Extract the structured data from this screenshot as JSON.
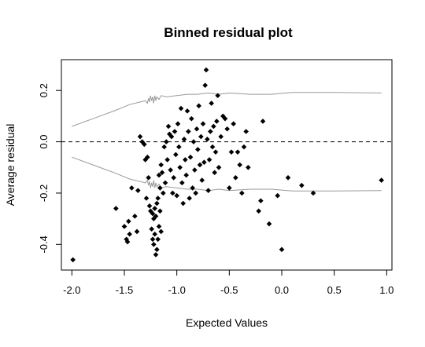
{
  "chart_data": {
    "type": "scatter",
    "title": "Binned residual plot",
    "xlabel": "Expected Values",
    "ylabel": "Average residual",
    "xlim": [
      -2.1,
      1.05
    ],
    "ylim": [
      -0.5,
      0.32
    ],
    "x_ticks": [
      -2.0,
      -1.5,
      -1.0,
      -0.5,
      0.0,
      0.5,
      1.0
    ],
    "x_tick_labels": [
      "-2.0",
      "-1.5",
      "-1.0",
      "-0.5",
      "0.0",
      "0.5",
      "1.0"
    ],
    "y_ticks": [
      -0.4,
      -0.2,
      0.0,
      0.2
    ],
    "y_tick_labels": [
      "-0.4",
      "-0.2",
      "0.0",
      "0.2"
    ],
    "grid": false,
    "colors": {
      "points": "#000000",
      "bands": "#999999",
      "reference": "#000000"
    },
    "reference_line": {
      "y": 0,
      "style": "dashed"
    },
    "upper_band": [
      [
        -2.0,
        0.06
      ],
      [
        -1.8,
        0.09
      ],
      [
        -1.6,
        0.12
      ],
      [
        -1.45,
        0.145
      ],
      [
        -1.35,
        0.155
      ],
      [
        -1.3,
        0.16
      ],
      [
        -1.28,
        0.15
      ],
      [
        -1.27,
        0.17
      ],
      [
        -1.26,
        0.155
      ],
      [
        -1.25,
        0.18
      ],
      [
        -1.24,
        0.16
      ],
      [
        -1.23,
        0.175
      ],
      [
        -1.22,
        0.15
      ],
      [
        -1.21,
        0.18
      ],
      [
        -1.2,
        0.16
      ],
      [
        -1.19,
        0.175
      ],
      [
        -1.17,
        0.165
      ],
      [
        -1.15,
        0.18
      ],
      [
        -1.1,
        0.175
      ],
      [
        -1.0,
        0.18
      ],
      [
        -0.9,
        0.185
      ],
      [
        -0.8,
        0.185
      ],
      [
        -0.7,
        0.19
      ],
      [
        -0.6,
        0.185
      ],
      [
        -0.5,
        0.19
      ],
      [
        -0.3,
        0.185
      ],
      [
        -0.1,
        0.185
      ],
      [
        0.1,
        0.192
      ],
      [
        0.5,
        0.192
      ],
      [
        0.95,
        0.19
      ]
    ],
    "lower_band": [
      [
        -2.0,
        -0.06
      ],
      [
        -1.8,
        -0.09
      ],
      [
        -1.6,
        -0.12
      ],
      [
        -1.45,
        -0.145
      ],
      [
        -1.35,
        -0.155
      ],
      [
        -1.3,
        -0.16
      ],
      [
        -1.28,
        -0.15
      ],
      [
        -1.27,
        -0.17
      ],
      [
        -1.26,
        -0.155
      ],
      [
        -1.25,
        -0.18
      ],
      [
        -1.24,
        -0.16
      ],
      [
        -1.23,
        -0.175
      ],
      [
        -1.22,
        -0.15
      ],
      [
        -1.21,
        -0.18
      ],
      [
        -1.2,
        -0.16
      ],
      [
        -1.19,
        -0.175
      ],
      [
        -1.17,
        -0.165
      ],
      [
        -1.15,
        -0.18
      ],
      [
        -1.1,
        -0.175
      ],
      [
        -1.0,
        -0.18
      ],
      [
        -0.9,
        -0.185
      ],
      [
        -0.8,
        -0.185
      ],
      [
        -0.7,
        -0.19
      ],
      [
        -0.6,
        -0.185
      ],
      [
        -0.5,
        -0.19
      ],
      [
        -0.3,
        -0.185
      ],
      [
        -0.1,
        -0.185
      ],
      [
        0.1,
        -0.192
      ],
      [
        0.5,
        -0.192
      ],
      [
        0.95,
        -0.19
      ]
    ],
    "points": [
      [
        -1.99,
        -0.46
      ],
      [
        -1.58,
        -0.26
      ],
      [
        -1.5,
        -0.33
      ],
      [
        -1.48,
        -0.38
      ],
      [
        -1.47,
        -0.39
      ],
      [
        -1.46,
        -0.31
      ],
      [
        -1.45,
        -0.36
      ],
      [
        -1.43,
        -0.18
      ],
      [
        -1.4,
        -0.29
      ],
      [
        -1.38,
        -0.35
      ],
      [
        -1.37,
        -0.19
      ],
      [
        -1.35,
        0.02
      ],
      [
        -1.33,
        0.0
      ],
      [
        -1.31,
        -0.01
      ],
      [
        -1.3,
        -0.07
      ],
      [
        -1.29,
        -0.22
      ],
      [
        -1.28,
        -0.06
      ],
      [
        -1.27,
        -0.14
      ],
      [
        -1.26,
        -0.25
      ],
      [
        -1.25,
        -0.27
      ],
      [
        -1.24,
        -0.34
      ],
      [
        -1.23,
        -0.28
      ],
      [
        -1.23,
        -0.38
      ],
      [
        -1.22,
        -0.3
      ],
      [
        -1.22,
        -0.4
      ],
      [
        -1.21,
        -0.26
      ],
      [
        -1.21,
        -0.36
      ],
      [
        -1.2,
        -0.44
      ],
      [
        -1.2,
        -0.29
      ],
      [
        -1.19,
        -0.42
      ],
      [
        -1.19,
        -0.24
      ],
      [
        -1.18,
        -0.38
      ],
      [
        -1.18,
        -0.22
      ],
      [
        -1.17,
        -0.33
      ],
      [
        -1.17,
        -0.13
      ],
      [
        -1.16,
        -0.27
      ],
      [
        -1.16,
        -0.18
      ],
      [
        -1.15,
        -0.09
      ],
      [
        -1.15,
        -0.35
      ],
      [
        -1.14,
        -0.12
      ],
      [
        -1.13,
        -0.2
      ],
      [
        -1.12,
        -0.02
      ],
      [
        -1.11,
        -0.16
      ],
      [
        -1.1,
        0.0
      ],
      [
        -1.09,
        -0.07
      ],
      [
        -1.08,
        0.06
      ],
      [
        -1.07,
        0.03
      ],
      [
        -1.06,
        -0.11
      ],
      [
        -1.05,
        0.02
      ],
      [
        -1.04,
        -0.2
      ],
      [
        -1.03,
        -0.14
      ],
      [
        -1.02,
        0.04
      ],
      [
        -1.01,
        -0.05
      ],
      [
        -1.0,
        -0.21
      ],
      [
        -0.99,
        0.07
      ],
      [
        -0.98,
        -0.02
      ],
      [
        -0.97,
        -0.1
      ],
      [
        -0.96,
        0.13
      ],
      [
        -0.95,
        -0.16
      ],
      [
        -0.94,
        -0.24
      ],
      [
        -0.93,
        0.01
      ],
      [
        -0.92,
        -0.07
      ],
      [
        -0.91,
        -0.13
      ],
      [
        -0.9,
        0.12
      ],
      [
        -0.89,
        0.04
      ],
      [
        -0.88,
        -0.22
      ],
      [
        -0.87,
        -0.06
      ],
      [
        -0.86,
        0.09
      ],
      [
        -0.85,
        -0.18
      ],
      [
        -0.84,
        0.0
      ],
      [
        -0.83,
        -0.11
      ],
      [
        -0.82,
        -0.2
      ],
      [
        -0.81,
        0.05
      ],
      [
        -0.8,
        -0.03
      ],
      [
        -0.79,
        0.14
      ],
      [
        -0.78,
        -0.09
      ],
      [
        -0.77,
        0.02
      ],
      [
        -0.76,
        -0.15
      ],
      [
        -0.75,
        0.07
      ],
      [
        -0.74,
        -0.08
      ],
      [
        -0.73,
        0.22
      ],
      [
        -0.72,
        0.28
      ],
      [
        -0.71,
        0.01
      ],
      [
        -0.7,
        -0.19
      ],
      [
        -0.69,
        -0.07
      ],
      [
        -0.68,
        0.04
      ],
      [
        -0.67,
        0.15
      ],
      [
        -0.66,
        -0.02
      ],
      [
        -0.65,
        0.06
      ],
      [
        -0.64,
        -0.12
      ],
      [
        -0.63,
        -0.04
      ],
      [
        -0.62,
        0.08
      ],
      [
        -0.61,
        0.18
      ],
      [
        -0.6,
        -0.1
      ],
      [
        -0.58,
        0.02
      ],
      [
        -0.56,
        0.1
      ],
      [
        -0.54,
        0.09
      ],
      [
        -0.52,
        0.05
      ],
      [
        -0.5,
        -0.18
      ],
      [
        -0.48,
        -0.04
      ],
      [
        -0.46,
        0.07
      ],
      [
        -0.44,
        -0.14
      ],
      [
        -0.42,
        -0.04
      ],
      [
        -0.4,
        -0.09
      ],
      [
        -0.38,
        -0.2
      ],
      [
        -0.36,
        -0.02
      ],
      [
        -0.34,
        0.04
      ],
      [
        -0.32,
        -0.1
      ],
      [
        -0.22,
        -0.27
      ],
      [
        -0.2,
        -0.23
      ],
      [
        -0.18,
        0.08
      ],
      [
        -0.12,
        -0.32
      ],
      [
        -0.04,
        -0.21
      ],
      [
        0.0,
        -0.42
      ],
      [
        0.06,
        -0.14
      ],
      [
        0.19,
        -0.17
      ],
      [
        0.3,
        -0.2
      ],
      [
        0.95,
        -0.15
      ]
    ]
  }
}
